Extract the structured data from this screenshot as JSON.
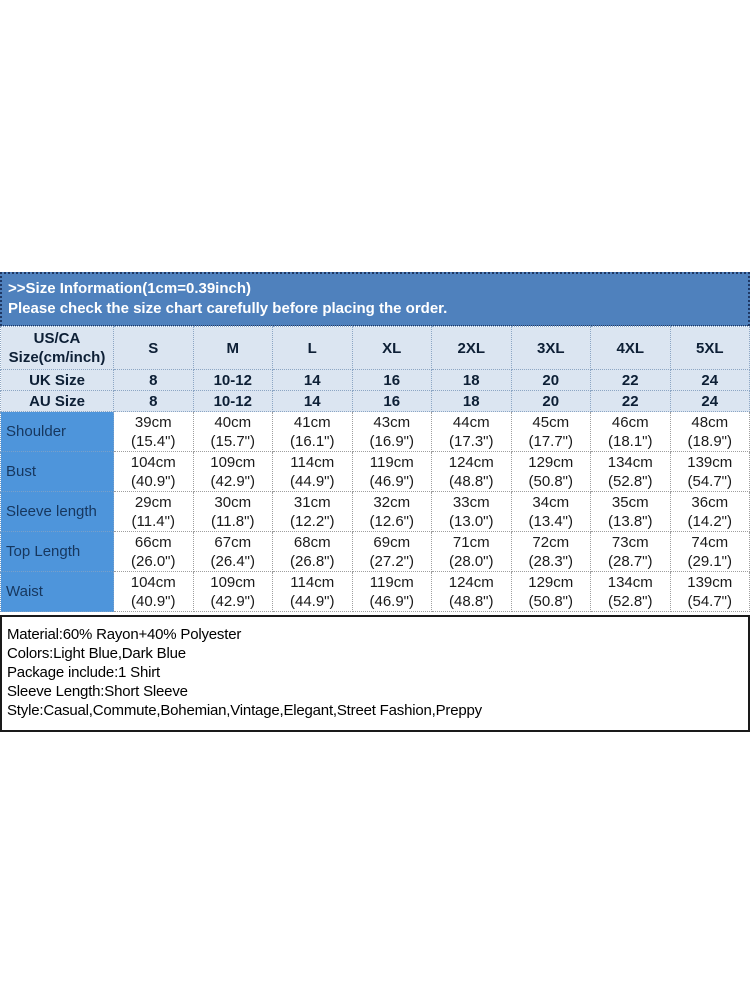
{
  "banner": {
    "title": ">>Size Information(1cm=0.39inch)",
    "subtitle": "Please check the size chart carefully before placing the order."
  },
  "table": {
    "corner_header": "US/CA Size(cm/inch)",
    "size_headers": [
      "S",
      "M",
      "L",
      "XL",
      "2XL",
      "3XL",
      "4XL",
      "5XL"
    ],
    "region_rows": [
      {
        "label": "UK Size",
        "values": [
          "8",
          "10-12",
          "14",
          "16",
          "18",
          "20",
          "22",
          "24"
        ]
      },
      {
        "label": "AU Size",
        "values": [
          "8",
          "10-12",
          "14",
          "16",
          "18",
          "20",
          "22",
          "24"
        ]
      }
    ],
    "rows": [
      {
        "label": "Shoulder",
        "cm": [
          "39cm",
          "40cm",
          "41cm",
          "43cm",
          "44cm",
          "45cm",
          "46cm",
          "48cm"
        ],
        "inch": [
          "(15.4\")",
          "(15.7\")",
          "(16.1\")",
          "(16.9\")",
          "(17.3\")",
          "(17.7\")",
          "(18.1\")",
          "(18.9\")"
        ]
      },
      {
        "label": "Bust",
        "cm": [
          "104cm",
          "109cm",
          "114cm",
          "119cm",
          "124cm",
          "129cm",
          "134cm",
          "139cm"
        ],
        "inch": [
          "(40.9\")",
          "(42.9\")",
          "(44.9\")",
          "(46.9\")",
          "(48.8\")",
          "(50.8\")",
          "(52.8\")",
          "(54.7\")"
        ]
      },
      {
        "label": "Sleeve length",
        "cm": [
          "29cm",
          "30cm",
          "31cm",
          "32cm",
          "33cm",
          "34cm",
          "35cm",
          "36cm"
        ],
        "inch": [
          "(11.4\")",
          "(11.8\")",
          "(12.2\")",
          "(12.6\")",
          "(13.0\")",
          "(13.4\")",
          "(13.8\")",
          "(14.2\")"
        ]
      },
      {
        "label": "Top Length",
        "cm": [
          "66cm",
          "67cm",
          "68cm",
          "69cm",
          "71cm",
          "72cm",
          "73cm",
          "74cm"
        ],
        "inch": [
          "(26.0\")",
          "(26.4\")",
          "(26.8\")",
          "(27.2\")",
          "(28.0\")",
          "(28.3\")",
          "(28.7\")",
          "(29.1\")"
        ]
      },
      {
        "label": "Waist",
        "cm": [
          "104cm",
          "109cm",
          "114cm",
          "119cm",
          "124cm",
          "129cm",
          "134cm",
          "139cm"
        ],
        "inch": [
          "(40.9\")",
          "(42.9\")",
          "(44.9\")",
          "(46.9\")",
          "(48.8\")",
          "(50.8\")",
          "(52.8\")",
          "(54.7\")"
        ]
      }
    ]
  },
  "details": {
    "lines": [
      "Material:60% Rayon+40% Polyester",
      "Colors:Light Blue,Dark Blue",
      "Package include:1 Shirt",
      "Sleeve Length:Short Sleeve",
      "Style:Casual,Commute,Bohemian,Vintage,Elegant,Street Fashion,Preppy"
    ]
  },
  "colors": {
    "banner_blue": "#4f81bd",
    "banner_border": "#1f3864",
    "header_light_blue": "#dbe5f1",
    "label_column_blue": "#4e95db",
    "label_text": "#17375e",
    "body_text": "#1a1a1a"
  }
}
